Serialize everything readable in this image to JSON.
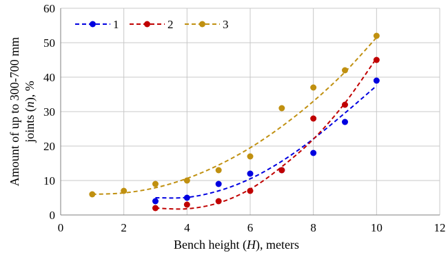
{
  "chart_data": {
    "type": "scatter",
    "xlabel_parts": [
      "Bench height (",
      "H",
      "), meters"
    ],
    "ylabel_line1": "Amount of up to 300-700 mm",
    "ylabel_line2_parts": [
      "joints (",
      "n",
      "), %"
    ],
    "xlim": [
      0,
      12
    ],
    "ylim": [
      0,
      60
    ],
    "xticks": [
      "0",
      "2",
      "4",
      "6",
      "8",
      "10",
      "12"
    ],
    "yticks": [
      "0",
      "10",
      "20",
      "30",
      "40",
      "50",
      "60"
    ],
    "grid": true,
    "legend_position": "top-left",
    "series": [
      {
        "name": "1",
        "color": "#0000e0",
        "x": [
          3,
          4,
          5,
          6,
          7,
          8,
          9,
          10
        ],
        "y": [
          4,
          5,
          9,
          12,
          13,
          18,
          27,
          39
        ],
        "trend_x": [
          3,
          4,
          5,
          6,
          7,
          8,
          9,
          10
        ],
        "trend_y": [
          5,
          5.1,
          7,
          10.5,
          15.6,
          22.1,
          29.6,
          37.5
        ]
      },
      {
        "name": "2",
        "color": "#c00000",
        "x": [
          3,
          4,
          5,
          6,
          7,
          8,
          9,
          10
        ],
        "y": [
          2,
          3,
          4,
          7,
          13,
          28,
          32,
          45
        ],
        "trend_x": [
          3,
          4,
          5,
          6,
          7,
          8,
          9,
          10
        ],
        "trend_y": [
          2,
          1.8,
          3.5,
          7.5,
          14,
          22,
          32.5,
          45.5
        ]
      },
      {
        "name": "3",
        "color": "#c09010",
        "x": [
          1,
          2,
          3,
          4,
          5,
          6,
          7,
          8,
          9,
          10
        ],
        "y": [
          6,
          7,
          9,
          10,
          13,
          17,
          31,
          37,
          42,
          52
        ],
        "trend_x": [
          1,
          2,
          3,
          4,
          5,
          6,
          7,
          8,
          9,
          10
        ],
        "trend_y": [
          6,
          6.4,
          7.9,
          10.6,
          14.5,
          19.5,
          25.7,
          33,
          41.5,
          51.5
        ]
      }
    ]
  }
}
